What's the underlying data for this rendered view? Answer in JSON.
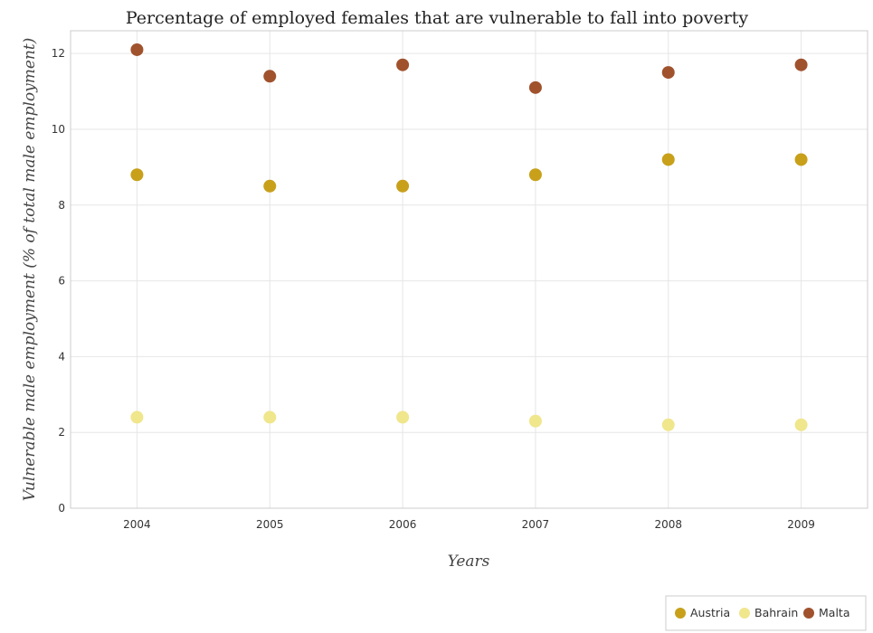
{
  "chart_data": {
    "type": "scatter",
    "title": "Percentage of employed females that are vulnerable to fall into poverty",
    "xlabel": "Years",
    "ylabel": "Vulnerable male employment (% of total male employment)",
    "categories": [
      "2004",
      "2005",
      "2006",
      "2007",
      "2008",
      "2009"
    ],
    "ylim": [
      0,
      12.6
    ],
    "yticks": [
      "0",
      "2",
      "4",
      "6",
      "8",
      "10",
      "12"
    ],
    "grid": true,
    "legend_position": "bottom-right",
    "series": [
      {
        "name": "Austria",
        "color": "#c8a01a",
        "values": [
          8.8,
          8.5,
          8.5,
          8.8,
          9.2,
          9.2
        ]
      },
      {
        "name": "Bahrain",
        "color": "#f0e68c",
        "values": [
          2.4,
          2.4,
          2.4,
          2.3,
          2.2,
          2.2
        ]
      },
      {
        "name": "Malta",
        "color": "#a0522d",
        "values": [
          12.1,
          11.4,
          11.7,
          11.1,
          11.5,
          11.7
        ]
      }
    ]
  }
}
